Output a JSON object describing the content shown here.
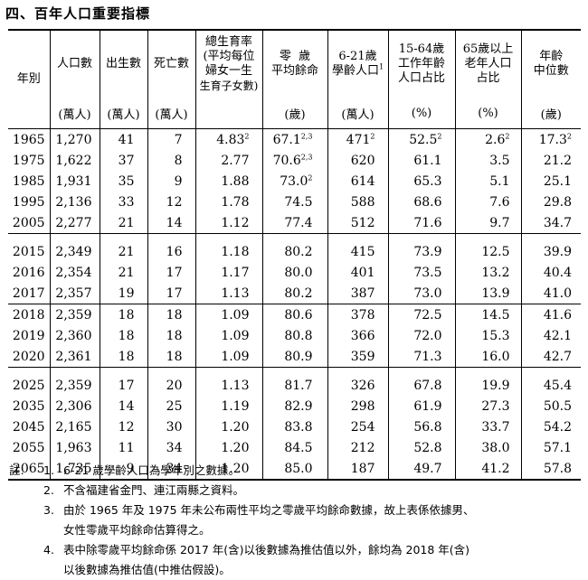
{
  "title": "四、百年人口重要指標",
  "headers": {
    "year": "年別",
    "pop": "人口數",
    "birth": "出生數",
    "death": "死亡數",
    "tfr_1": "總生育率",
    "tfr_2": "(平均每位",
    "tfr_3": "婦女一生",
    "tfr_4": "生育子女數)",
    "life_1": "零  歲",
    "life_2": "平均餘命",
    "school_1": "6-21歲",
    "school_2": "學齡人口",
    "school_sup": "1",
    "work_1": "15-64歲",
    "work_2": "工作年齡",
    "work_3": "人口占比",
    "old_1": "65歲以上",
    "old_2": "老年人口",
    "old_3": "占比",
    "median_1": "年齡",
    "median_2": "中位數"
  },
  "units": {
    "pop": "(萬人)",
    "birth": "(萬人)",
    "death": "(萬人)",
    "life": "(歲)",
    "school": "(萬人)",
    "work": "(%)",
    "old": "(%)",
    "median": "(歲)"
  },
  "rows": [
    {
      "year": "1965",
      "pop": "1,270",
      "birth": "41",
      "death": "7",
      "tfr": "4.83",
      "tfr_sup": "2",
      "life": "67.1",
      "life_sup": "2,3",
      "school": "471",
      "school_sup": "2",
      "work": "52.5",
      "work_sup": "2",
      "old": "2.6",
      "old_sup": "2",
      "median": "17.3",
      "median_sup": "2"
    },
    {
      "year": "1975",
      "pop": "1,622",
      "birth": "37",
      "death": "8",
      "tfr": "2.77",
      "tfr_sup": "",
      "life": "70.6",
      "life_sup": "2,3",
      "school": "620",
      "school_sup": "",
      "work": "61.1",
      "work_sup": "",
      "old": "3.5",
      "old_sup": "",
      "median": "21.2",
      "median_sup": ""
    },
    {
      "year": "1985",
      "pop": "1,931",
      "birth": "35",
      "death": "9",
      "tfr": "1.88",
      "tfr_sup": "",
      "life": "73.0",
      "life_sup": "2",
      "school": "614",
      "school_sup": "",
      "work": "65.3",
      "work_sup": "",
      "old": "5.1",
      "old_sup": "",
      "median": "25.1",
      "median_sup": ""
    },
    {
      "year": "1995",
      "pop": "2,136",
      "birth": "33",
      "death": "12",
      "tfr": "1.78",
      "tfr_sup": "",
      "life": "74.5",
      "life_sup": "",
      "school": "588",
      "school_sup": "",
      "work": "68.6",
      "work_sup": "",
      "old": "7.6",
      "old_sup": "",
      "median": "29.8",
      "median_sup": ""
    },
    {
      "year": "2005",
      "pop": "2,277",
      "birth": "21",
      "death": "14",
      "tfr": "1.12",
      "tfr_sup": "",
      "life": "77.4",
      "life_sup": "",
      "school": "512",
      "school_sup": "",
      "work": "71.6",
      "work_sup": "",
      "old": "9.7",
      "old_sup": "",
      "median": "34.7",
      "median_sup": ""
    },
    {
      "year": "2015",
      "pop": "2,349",
      "birth": "21",
      "death": "16",
      "tfr": "1.18",
      "tfr_sup": "",
      "life": "80.2",
      "life_sup": "",
      "school": "415",
      "school_sup": "",
      "work": "73.9",
      "work_sup": "",
      "old": "12.5",
      "old_sup": "",
      "median": "39.9",
      "median_sup": ""
    },
    {
      "year": "2016",
      "pop": "2,354",
      "birth": "21",
      "death": "17",
      "tfr": "1.17",
      "tfr_sup": "",
      "life": "80.0",
      "life_sup": "",
      "school": "401",
      "school_sup": "",
      "work": "73.5",
      "work_sup": "",
      "old": "13.2",
      "old_sup": "",
      "median": "40.4",
      "median_sup": ""
    },
    {
      "year": "2017",
      "pop": "2,357",
      "birth": "19",
      "death": "17",
      "tfr": "1.13",
      "tfr_sup": "",
      "life": "80.2",
      "life_sup": "",
      "school": "387",
      "school_sup": "",
      "work": "73.0",
      "work_sup": "",
      "old": "13.9",
      "old_sup": "",
      "median": "41.0",
      "median_sup": ""
    },
    {
      "year": "2018",
      "pop": "2,359",
      "birth": "18",
      "death": "18",
      "tfr": "1.09",
      "tfr_sup": "",
      "life": "80.6",
      "life_sup": "",
      "school": "378",
      "school_sup": "",
      "work": "72.5",
      "work_sup": "",
      "old": "14.5",
      "old_sup": "",
      "median": "41.6",
      "median_sup": ""
    },
    {
      "year": "2019",
      "pop": "2,360",
      "birth": "18",
      "death": "18",
      "tfr": "1.09",
      "tfr_sup": "",
      "life": "80.8",
      "life_sup": "",
      "school": "366",
      "school_sup": "",
      "work": "72.0",
      "work_sup": "",
      "old": "15.3",
      "old_sup": "",
      "median": "42.1",
      "median_sup": ""
    },
    {
      "year": "2020",
      "pop": "2,361",
      "birth": "18",
      "death": "18",
      "tfr": "1.09",
      "tfr_sup": "",
      "life": "80.9",
      "life_sup": "",
      "school": "359",
      "school_sup": "",
      "work": "71.3",
      "work_sup": "",
      "old": "16.0",
      "old_sup": "",
      "median": "42.7",
      "median_sup": ""
    },
    {
      "year": "2025",
      "pop": "2,359",
      "birth": "17",
      "death": "20",
      "tfr": "1.13",
      "tfr_sup": "",
      "life": "81.7",
      "life_sup": "",
      "school": "326",
      "school_sup": "",
      "work": "67.8",
      "work_sup": "",
      "old": "19.9",
      "old_sup": "",
      "median": "45.4",
      "median_sup": ""
    },
    {
      "year": "2035",
      "pop": "2,306",
      "birth": "14",
      "death": "25",
      "tfr": "1.19",
      "tfr_sup": "",
      "life": "82.9",
      "life_sup": "",
      "school": "298",
      "school_sup": "",
      "work": "61.9",
      "work_sup": "",
      "old": "27.3",
      "old_sup": "",
      "median": "50.5",
      "median_sup": ""
    },
    {
      "year": "2045",
      "pop": "2,165",
      "birth": "12",
      "death": "30",
      "tfr": "1.20",
      "tfr_sup": "",
      "life": "83.8",
      "life_sup": "",
      "school": "254",
      "school_sup": "",
      "work": "56.8",
      "work_sup": "",
      "old": "33.7",
      "old_sup": "",
      "median": "54.2",
      "median_sup": ""
    },
    {
      "year": "2055",
      "pop": "1,963",
      "birth": "11",
      "death": "34",
      "tfr": "1.20",
      "tfr_sup": "",
      "life": "84.5",
      "life_sup": "",
      "school": "212",
      "school_sup": "",
      "work": "52.8",
      "work_sup": "",
      "old": "38.0",
      "old_sup": "",
      "median": "57.1",
      "median_sup": ""
    },
    {
      "year": "2065",
      "pop": "1,735",
      "birth": "9",
      "death": "34",
      "tfr": "1.20",
      "tfr_sup": "",
      "life": "85.0",
      "life_sup": "",
      "school": "187",
      "school_sup": "",
      "work": "49.7",
      "work_sup": "",
      "old": "41.2",
      "old_sup": "",
      "median": "57.8",
      "median_sup": ""
    }
  ],
  "notes": {
    "lead": "註:",
    "items": [
      {
        "num": "1.",
        "lines": [
          "6-21 歲學齡人口為學年別之數據。"
        ]
      },
      {
        "num": "2.",
        "lines": [
          "不含福建省金門、連江兩縣之資料。"
        ]
      },
      {
        "num": "3.",
        "lines": [
          "由於 1965 年及 1975 年未公布兩性平均之零歲平均餘命數據，故上表係依據男、",
          "女性零歲平均餘命估算得之。"
        ]
      },
      {
        "num": "4.",
        "lines": [
          "表中除零歲平均餘命係 2017 年(含)以後數據為推估值以外，餘均為 2018 年(含)",
          "以後數據為推估值(中推估假設)。"
        ]
      }
    ]
  }
}
